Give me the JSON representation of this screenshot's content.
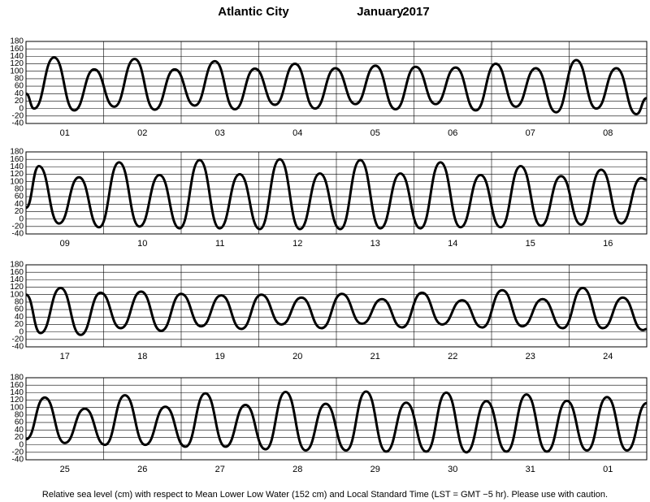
{
  "title": "Atlantic City",
  "month": "January",
  "year": "2017",
  "note": "Relative sea level (cm) with respect to Mean Lower Low Water (152 cm) and Local Standard Time (LST = GMT −5 hr). Please use with caution.",
  "chart_data": [
    {
      "type": "line",
      "color": "#000000",
      "grid": true,
      "categories": [
        "01",
        "02",
        "03",
        "04",
        "05",
        "06",
        "07",
        "08"
      ],
      "xlim": [
        0,
        192
      ],
      "ylim": [
        -40,
        180
      ],
      "yticks": [
        -40,
        -20,
        0,
        20,
        40,
        60,
        80,
        100,
        120,
        140,
        160,
        180
      ],
      "x": [
        0,
        2.5,
        8.7,
        14.9,
        21.1,
        27.3,
        33.6,
        39.8,
        46,
        52.2,
        58.4,
        64.6,
        70.8,
        77,
        83.2,
        89.4,
        95.7,
        101.9,
        108.1,
        114.3,
        120.5,
        126.7,
        132.9,
        139.1,
        145.3,
        151.5,
        157.7,
        164,
        170.2,
        176.4,
        182.6,
        188.8,
        192
      ],
      "values": [
        40,
        0,
        137,
        -5,
        105,
        5,
        133,
        -3,
        105,
        8,
        127,
        -2,
        107,
        10,
        120,
        0,
        108,
        12,
        115,
        -2,
        112,
        12,
        110,
        -5,
        120,
        5,
        108,
        -10,
        130,
        0,
        108,
        -15,
        28
      ]
    },
    {
      "type": "line",
      "color": "#000000",
      "grid": true,
      "categories": [
        "09",
        "10",
        "11",
        "12",
        "13",
        "14",
        "15",
        "16"
      ],
      "xlim": [
        0,
        192
      ],
      "ylim": [
        -40,
        180
      ],
      "yticks": [
        -40,
        -20,
        0,
        20,
        40,
        60,
        80,
        100,
        120,
        140,
        160,
        180
      ],
      "x": [
        0,
        4,
        10.2,
        16.4,
        22.6,
        28.8,
        35.1,
        41.3,
        47.5,
        53.7,
        59.9,
        66.1,
        72.3,
        78.5,
        84.7,
        90.9,
        97.2,
        103.4,
        109.6,
        115.8,
        122,
        128.2,
        134.4,
        140.6,
        146.8,
        153,
        159.3,
        165.5,
        171.7,
        177.9,
        184.1,
        190.3,
        192
      ],
      "values": [
        30,
        142,
        -12,
        112,
        -22,
        152,
        -20,
        118,
        -25,
        158,
        -25,
        120,
        -27,
        160,
        -27,
        122,
        -27,
        158,
        -25,
        122,
        -25,
        152,
        -22,
        118,
        -22,
        142,
        -18,
        115,
        -15,
        132,
        -12,
        110,
        105
      ]
    },
    {
      "type": "line",
      "color": "#000000",
      "grid": true,
      "categories": [
        "17",
        "18",
        "19",
        "20",
        "21",
        "22",
        "23",
        "24"
      ],
      "xlim": [
        0,
        192
      ],
      "ylim": [
        -40,
        180
      ],
      "yticks": [
        -40,
        -20,
        0,
        20,
        40,
        60,
        80,
        100,
        120,
        140,
        160,
        180
      ],
      "x": [
        0,
        4.5,
        10.7,
        16.9,
        23.1,
        29.3,
        35.6,
        41.8,
        48,
        54.2,
        60.4,
        66.6,
        72.8,
        79,
        85.2,
        91.4,
        97.7,
        103.9,
        110.1,
        116.3,
        122.5,
        128.7,
        134.9,
        141.1,
        147.3,
        153.5,
        159.8,
        166,
        172.2,
        178.4,
        184.6,
        190.8,
        192
      ],
      "values": [
        100,
        -3,
        118,
        -8,
        105,
        10,
        108,
        3,
        102,
        15,
        98,
        8,
        100,
        20,
        92,
        10,
        102,
        22,
        88,
        12,
        105,
        20,
        85,
        12,
        112,
        15,
        88,
        10,
        118,
        10,
        92,
        5,
        8
      ]
    },
    {
      "type": "line",
      "color": "#000000",
      "grid": true,
      "categories": [
        "25",
        "26",
        "27",
        "28",
        "29",
        "30",
        "31",
        "01"
      ],
      "xlim": [
        0,
        192
      ],
      "ylim": [
        -40,
        180
      ],
      "yticks": [
        -40,
        -20,
        0,
        20,
        40,
        60,
        80,
        100,
        120,
        140,
        160,
        180
      ],
      "x": [
        0,
        5.8,
        12,
        18.2,
        24.4,
        30.6,
        36.9,
        43.1,
        49.3,
        55.5,
        61.7,
        67.9,
        74.1,
        80.3,
        86.5,
        92.7,
        99,
        105.2,
        111.4,
        117.6,
        123.8,
        130,
        136.2,
        142.4,
        148.6,
        154.8,
        161.1,
        167.3,
        173.5,
        179.7,
        185.9,
        192
      ],
      "values": [
        15,
        127,
        5,
        97,
        0,
        133,
        0,
        102,
        -5,
        138,
        -5,
        107,
        -12,
        142,
        -15,
        110,
        -15,
        143,
        -18,
        113,
        -18,
        140,
        -20,
        117,
        -18,
        135,
        -18,
        118,
        -15,
        128,
        -15,
        112
      ]
    }
  ]
}
